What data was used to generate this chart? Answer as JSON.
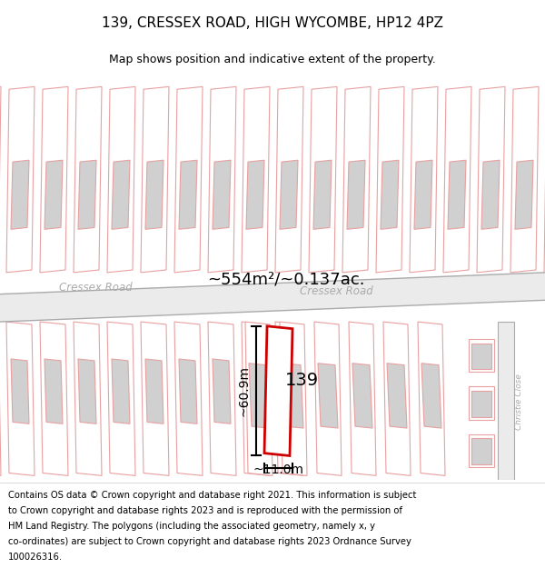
{
  "title": "139, CRESSEX ROAD, HIGH WYCOMBE, HP12 4PZ",
  "subtitle": "Map shows position and indicative extent of the property.",
  "footer_lines": [
    "Contains OS data © Crown copyright and database right 2021. This information is subject",
    "to Crown copyright and database rights 2023 and is reproduced with the permission of",
    "HM Land Registry. The polygons (including the associated geometry, namely x, y",
    "co-ordinates) are subject to Crown copyright and database rights 2023 Ordnance Survey",
    "100026316."
  ],
  "area_label": "~554m²/~0.137ac.",
  "width_label": "~11.0m",
  "height_label": "~60.9m",
  "property_number": "139",
  "road_label1": "Cressex Road",
  "road_label2": "Cressex Road",
  "side_label": "Christie Close",
  "map_bg": "#ffffff",
  "road_fill": "#ebebeb",
  "plot_outline_color": "#cc0000",
  "building_fill": "#d0d0d0",
  "pink_line_color": "#e8a0a0",
  "title_fontsize": 11,
  "subtitle_fontsize": 9,
  "footer_fontsize": 7.2
}
